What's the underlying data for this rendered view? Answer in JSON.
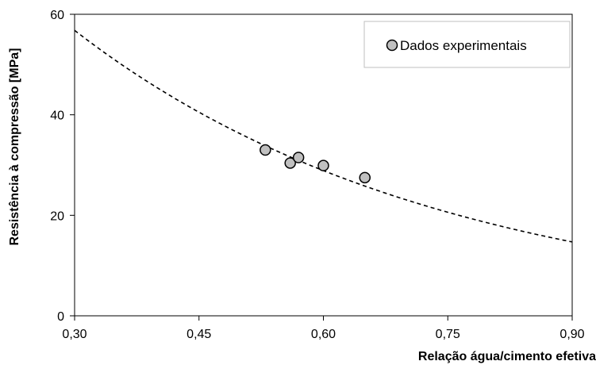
{
  "chart_data": {
    "type": "scatter",
    "xlabel": "Relação água/cimento efetiva",
    "ylabel": "Resistência à compressão [MPa]",
    "xlim": [
      0.3,
      0.9
    ],
    "ylim": [
      0,
      60
    ],
    "x_ticks": [
      "0,30",
      "0,45",
      "0,60",
      "0,75",
      "0,90"
    ],
    "y_ticks": [
      "0",
      "20",
      "40",
      "60"
    ],
    "legend_position": "top-right",
    "grid": false,
    "series": [
      {
        "name": "Dados experimentais",
        "marker": "circle",
        "color": "#c0c0c0",
        "points": [
          {
            "x": 0.53,
            "y": 33.0
          },
          {
            "x": 0.56,
            "y": 30.4
          },
          {
            "x": 0.57,
            "y": 31.5
          },
          {
            "x": 0.6,
            "y": 29.9
          },
          {
            "x": 0.65,
            "y": 27.5
          }
        ]
      }
    ],
    "trendline": {
      "style": "dashed",
      "color": "#000000",
      "points": [
        {
          "x": 0.3,
          "y": 56.8
        },
        {
          "x": 0.45,
          "y": 40.4
        },
        {
          "x": 0.6,
          "y": 28.6
        },
        {
          "x": 0.75,
          "y": 20.6
        },
        {
          "x": 0.9,
          "y": 14.7
        }
      ]
    }
  }
}
